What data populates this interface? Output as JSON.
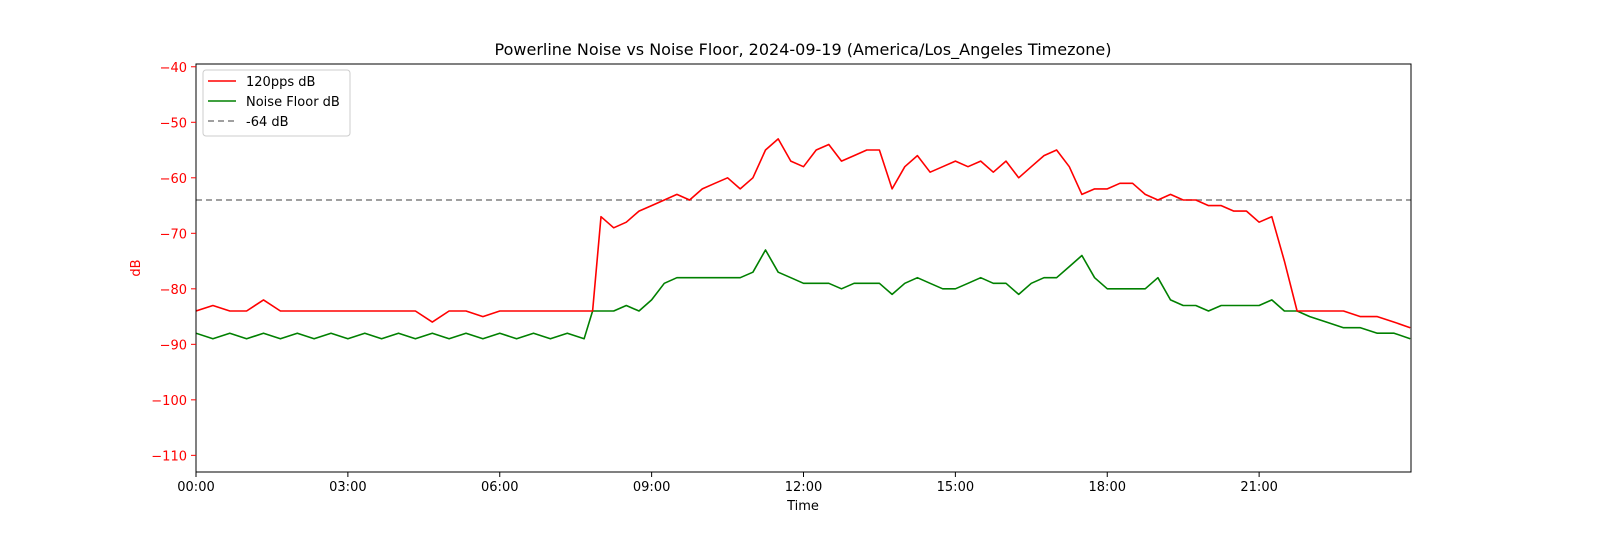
{
  "chart_data": {
    "type": "line",
    "title": "Powerline Noise vs Noise Floor, 2024-09-19 (America/Los_Angeles Timezone)",
    "xlabel": "Time",
    "ylabel": "dB",
    "xlim": [
      "00:00",
      "24:00"
    ],
    "ylim": [
      -113,
      -39.5
    ],
    "x_ticks": [
      "00:00",
      "03:00",
      "06:00",
      "09:00",
      "12:00",
      "15:00",
      "18:00",
      "21:00"
    ],
    "y_ticks": [
      -40,
      -50,
      -60,
      -70,
      -80,
      -90,
      -100,
      -110
    ],
    "grid": false,
    "legend_position": "top-left",
    "colors": {
      "powerline": "#ff0000",
      "noise_floor": "#008000",
      "reference": "#808080",
      "ylabel_color": "#ff0000"
    },
    "series": [
      {
        "name": "120pps dB",
        "x": [
          "00:00",
          "00:20",
          "00:40",
          "01:00",
          "01:20",
          "01:40",
          "02:00",
          "02:20",
          "02:40",
          "03:00",
          "03:20",
          "03:40",
          "04:00",
          "04:20",
          "04:40",
          "05:00",
          "05:20",
          "05:40",
          "06:00",
          "06:20",
          "06:40",
          "07:00",
          "07:20",
          "07:40",
          "07:50",
          "08:00",
          "08:15",
          "08:30",
          "08:45",
          "09:00",
          "09:15",
          "09:30",
          "09:45",
          "10:00",
          "10:15",
          "10:30",
          "10:45",
          "11:00",
          "11:15",
          "11:30",
          "11:45",
          "12:00",
          "12:15",
          "12:30",
          "12:45",
          "13:00",
          "13:15",
          "13:30",
          "13:45",
          "14:00",
          "14:15",
          "14:30",
          "14:45",
          "15:00",
          "15:15",
          "15:30",
          "15:45",
          "16:00",
          "16:15",
          "16:30",
          "16:45",
          "17:00",
          "17:15",
          "17:30",
          "17:45",
          "18:00",
          "18:15",
          "18:30",
          "18:45",
          "19:00",
          "19:15",
          "19:30",
          "19:45",
          "20:00",
          "20:15",
          "20:30",
          "20:45",
          "21:00",
          "21:15",
          "21:30",
          "21:45",
          "22:00",
          "22:20",
          "22:40",
          "23:00",
          "23:20",
          "23:40",
          "23:59"
        ],
        "values": [
          -84,
          -83,
          -84,
          -84,
          -82,
          -84,
          -84,
          -84,
          -84,
          -84,
          -84,
          -84,
          -84,
          -84,
          -86,
          -84,
          -84,
          -85,
          -84,
          -84,
          -84,
          -84,
          -84,
          -84,
          -84,
          -67,
          -69,
          -68,
          -66,
          -65,
          -64,
          -63,
          -64,
          -62,
          -61,
          -60,
          -62,
          -60,
          -55,
          -53,
          -57,
          -58,
          -55,
          -54,
          -57,
          -56,
          -55,
          -55,
          -62,
          -58,
          -56,
          -59,
          -58,
          -57,
          -58,
          -57,
          -59,
          -57,
          -60,
          -58,
          -56,
          -55,
          -58,
          -63,
          -62,
          -62,
          -61,
          -61,
          -63,
          -64,
          -63,
          -64,
          -64,
          -65,
          -65,
          -66,
          -66,
          -68,
          -67,
          -75,
          -84,
          -84,
          -84,
          -84,
          -85,
          -85,
          -86,
          -87
        ]
      },
      {
        "name": "Noise Floor dB",
        "x": [
          "00:00",
          "00:20",
          "00:40",
          "01:00",
          "01:20",
          "01:40",
          "02:00",
          "02:20",
          "02:40",
          "03:00",
          "03:20",
          "03:40",
          "04:00",
          "04:20",
          "04:40",
          "05:00",
          "05:20",
          "05:40",
          "06:00",
          "06:20",
          "06:40",
          "07:00",
          "07:20",
          "07:40",
          "07:50",
          "08:00",
          "08:15",
          "08:30",
          "08:45",
          "09:00",
          "09:15",
          "09:30",
          "09:45",
          "10:00",
          "10:15",
          "10:30",
          "10:45",
          "11:00",
          "11:15",
          "11:30",
          "11:45",
          "12:00",
          "12:15",
          "12:30",
          "12:45",
          "13:00",
          "13:15",
          "13:30",
          "13:45",
          "14:00",
          "14:15",
          "14:30",
          "14:45",
          "15:00",
          "15:15",
          "15:30",
          "15:45",
          "16:00",
          "16:15",
          "16:30",
          "16:45",
          "17:00",
          "17:15",
          "17:30",
          "17:45",
          "18:00",
          "18:15",
          "18:30",
          "18:45",
          "19:00",
          "19:15",
          "19:30",
          "19:45",
          "20:00",
          "20:15",
          "20:30",
          "20:45",
          "21:00",
          "21:15",
          "21:30",
          "21:45",
          "22:00",
          "22:20",
          "22:40",
          "23:00",
          "23:20",
          "23:40",
          "23:59"
        ],
        "values": [
          -88,
          -89,
          -88,
          -89,
          -88,
          -89,
          -88,
          -89,
          -88,
          -89,
          -88,
          -89,
          -88,
          -89,
          -88,
          -89,
          -88,
          -89,
          -88,
          -89,
          -88,
          -89,
          -88,
          -89,
          -84,
          -84,
          -84,
          -83,
          -84,
          -82,
          -79,
          -78,
          -78,
          -78,
          -78,
          -78,
          -78,
          -77,
          -73,
          -77,
          -78,
          -79,
          -79,
          -79,
          -80,
          -79,
          -79,
          -79,
          -81,
          -79,
          -78,
          -79,
          -80,
          -80,
          -79,
          -78,
          -79,
          -79,
          -81,
          -79,
          -78,
          -78,
          -76,
          -74,
          -78,
          -80,
          -80,
          -80,
          -80,
          -78,
          -82,
          -83,
          -83,
          -84,
          -83,
          -83,
          -83,
          -83,
          -82,
          -84,
          -84,
          -85,
          -86,
          -87,
          -87,
          -88,
          -88,
          -89
        ]
      },
      {
        "name": "-64 dB",
        "values": [
          -64
        ]
      }
    ]
  }
}
